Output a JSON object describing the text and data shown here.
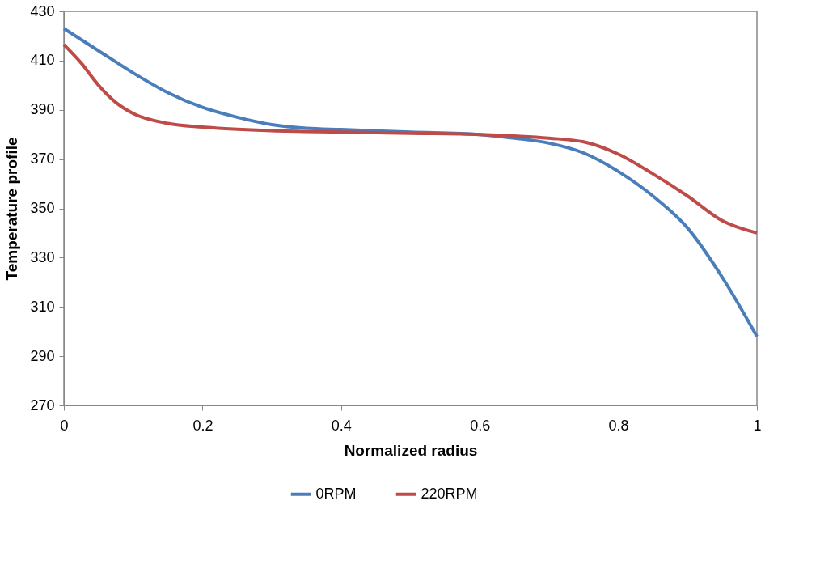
{
  "chart_data": {
    "type": "line",
    "xlabel": "Normalized radius",
    "ylabel": "Temperature profile",
    "xlim": [
      0,
      1
    ],
    "xticks": [
      0,
      0.2,
      0.4,
      0.6,
      0.8,
      1
    ],
    "ylim": [
      270,
      430
    ],
    "yticks": [
      270,
      290,
      310,
      330,
      350,
      370,
      390,
      410,
      430
    ],
    "grid": false,
    "legend": "bottom",
    "marker": "none",
    "line_style": "solid",
    "series": [
      {
        "name": "0RPM",
        "color": "#4a7ebb",
        "x": [
          0,
          0.05,
          0.1,
          0.15,
          0.2,
          0.25,
          0.3,
          0.35,
          0.4,
          0.5,
          0.6,
          0.65,
          0.7,
          0.75,
          0.8,
          0.85,
          0.9,
          0.95,
          1
        ],
        "values": [
          423,
          414,
          405,
          397,
          391,
          387,
          384,
          382.5,
          382,
          381,
          380,
          378.5,
          376.5,
          372.5,
          365,
          355,
          342,
          322,
          298
        ]
      },
      {
        "name": "220RPM",
        "color": "#be4b48",
        "x": [
          0,
          0.025,
          0.05,
          0.075,
          0.1,
          0.15,
          0.2,
          0.3,
          0.4,
          0.5,
          0.6,
          0.7,
          0.75,
          0.8,
          0.85,
          0.9,
          0.95,
          1
        ],
        "values": [
          416.5,
          409,
          400,
          393,
          388.5,
          384.5,
          383,
          381.5,
          381,
          380.5,
          380,
          378.5,
          377,
          372,
          364,
          355,
          345,
          340
        ]
      }
    ]
  }
}
